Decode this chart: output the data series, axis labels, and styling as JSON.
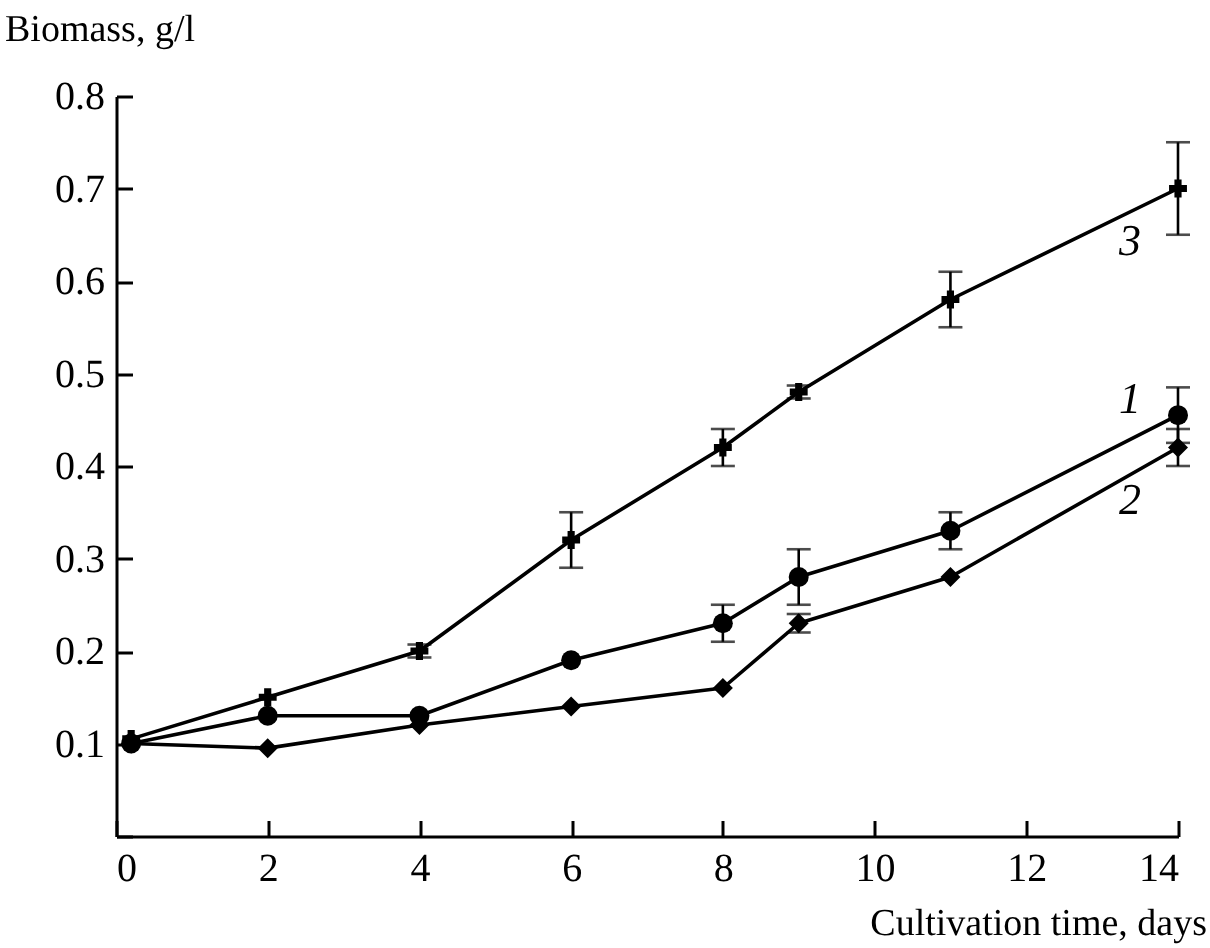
{
  "chart_data": {
    "type": "line",
    "xlabel": "Cultivation time, days",
    "ylabel": "Biomass, g/l",
    "xlim": [
      0,
      14
    ],
    "xticks": [
      0,
      2,
      4,
      6,
      8,
      10,
      12,
      14
    ],
    "ylim": [
      0,
      0.8
    ],
    "yticks": [
      {
        "value": 0,
        "label": null
      },
      0.1,
      0.2,
      0.3,
      0.4,
      0.5,
      0.6,
      0.7,
      0.8
    ],
    "grid": false,
    "line_style": "solid",
    "series": [
      {
        "name": "1",
        "color": "#000000",
        "marker": "circle",
        "x": [
          0.2,
          2,
          4,
          6,
          8,
          9,
          11,
          14
        ],
        "values": [
          0.1,
          0.13,
          0.13,
          0.19,
          0.23,
          0.28,
          0.33,
          0.455
        ],
        "errors": [
          null,
          null,
          null,
          null,
          0.02,
          0.03,
          0.02,
          0.03
        ]
      },
      {
        "name": "2",
        "color": "#000000",
        "marker": "diamond",
        "x": [
          0.2,
          2,
          4,
          6,
          8,
          9,
          11,
          14
        ],
        "values": [
          0.1,
          0.095,
          0.12,
          0.14,
          0.16,
          0.23,
          0.28,
          0.42
        ],
        "errors": [
          null,
          null,
          null,
          null,
          null,
          0.01,
          null,
          0.02
        ]
      },
      {
        "name": "3",
        "color": "#000000",
        "marker": "cross",
        "x": [
          0.2,
          2,
          4,
          6,
          8,
          9,
          11,
          14
        ],
        "values": [
          0.105,
          0.15,
          0.2,
          0.32,
          0.42,
          0.48,
          0.58,
          0.7
        ],
        "errors": [
          null,
          null,
          0.007,
          0.03,
          0.02,
          0.007,
          0.03,
          0.05
        ]
      }
    ]
  }
}
